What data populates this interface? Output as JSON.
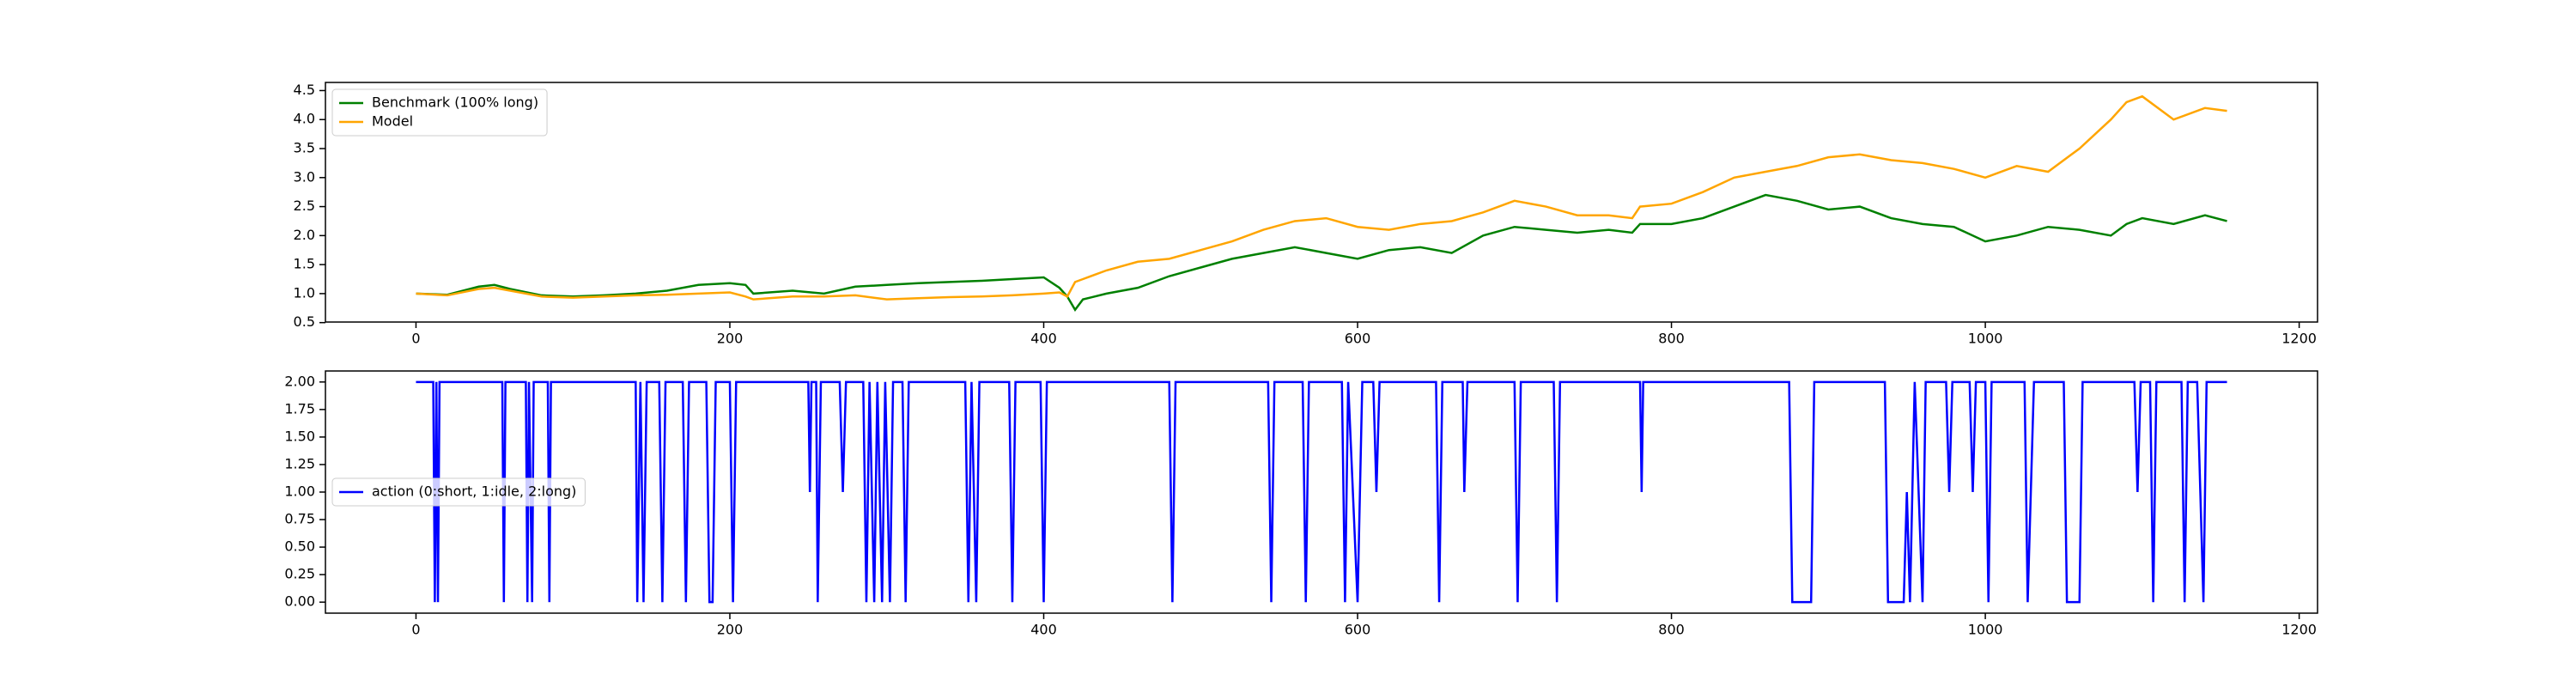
{
  "chart_data": [
    {
      "type": "line",
      "x": [
        0,
        20,
        40,
        50,
        60,
        80,
        100,
        120,
        140,
        160,
        180,
        200,
        210,
        215,
        240,
        260,
        280,
        300,
        320,
        340,
        360,
        380,
        400,
        410,
        415,
        420,
        425,
        440,
        460,
        480,
        500,
        520,
        540,
        560,
        580,
        600,
        620,
        640,
        660,
        680,
        700,
        720,
        740,
        760,
        775,
        780,
        800,
        820,
        840,
        860,
        880,
        900,
        920,
        940,
        960,
        980,
        1000,
        1020,
        1040,
        1060,
        1080,
        1090,
        1100,
        1120,
        1140,
        1154
      ],
      "series": [
        {
          "name": "Benchmark (100% long)",
          "color": "#008000",
          "values": [
            1.0,
            0.98,
            1.12,
            1.15,
            1.08,
            0.97,
            0.95,
            0.97,
            1.0,
            1.05,
            1.15,
            1.18,
            1.15,
            1.0,
            1.05,
            1.0,
            1.12,
            1.15,
            1.18,
            1.2,
            1.22,
            1.25,
            1.28,
            1.1,
            0.95,
            0.72,
            0.9,
            1.0,
            1.1,
            1.3,
            1.45,
            1.6,
            1.7,
            1.8,
            1.7,
            1.6,
            1.75,
            1.8,
            1.7,
            2.0,
            2.15,
            2.1,
            2.05,
            2.1,
            2.05,
            2.2,
            2.2,
            2.3,
            2.5,
            2.7,
            2.6,
            2.45,
            2.5,
            2.3,
            2.2,
            2.15,
            1.9,
            2.0,
            2.15,
            2.1,
            2.0,
            2.2,
            2.3,
            2.2,
            2.35,
            2.25
          ]
        },
        {
          "name": "Model",
          "color": "#ffa500",
          "values": [
            1.0,
            0.97,
            1.08,
            1.1,
            1.05,
            0.95,
            0.93,
            0.95,
            0.97,
            0.98,
            1.0,
            1.02,
            0.95,
            0.9,
            0.95,
            0.95,
            0.97,
            0.9,
            0.92,
            0.94,
            0.95,
            0.97,
            1.0,
            1.02,
            0.95,
            1.2,
            1.25,
            1.4,
            1.55,
            1.6,
            1.75,
            1.9,
            2.1,
            2.25,
            2.3,
            2.15,
            2.1,
            2.2,
            2.25,
            2.4,
            2.6,
            2.5,
            2.35,
            2.35,
            2.3,
            2.5,
            2.55,
            2.75,
            3.0,
            3.1,
            3.2,
            3.35,
            3.4,
            3.3,
            3.25,
            3.15,
            3.0,
            3.2,
            3.1,
            3.5,
            4.0,
            4.3,
            4.4,
            4.0,
            4.2,
            4.15
          ]
        }
      ],
      "xlim": [
        -57.7,
        1211.7
      ],
      "xticks": [
        0,
        200,
        400,
        600,
        800,
        1000,
        1200
      ],
      "ylim": [
        0.51,
        4.64
      ],
      "yticks": [
        0.5,
        {
          "value": 1.0,
          "label": "1.0"
        },
        1.5,
        {
          "value": 2.0,
          "label": "2.0"
        },
        2.5,
        {
          "value": 3.0,
          "label": "3.0"
        },
        3.5,
        {
          "value": 4.0,
          "label": "4.0"
        },
        4.5
      ],
      "legend": "upper left"
    },
    {
      "type": "line",
      "x": [
        0,
        11,
        12,
        13,
        14,
        15,
        55,
        56,
        57,
        70,
        71,
        72,
        74,
        75,
        84,
        85,
        86,
        140,
        141,
        143,
        145,
        147,
        155,
        157,
        159,
        170,
        172,
        174,
        185,
        187,
        189,
        191,
        200,
        202,
        204,
        250,
        251,
        252,
        255,
        256,
        258,
        270,
        272,
        274,
        285,
        287,
        289,
        292,
        294,
        297,
        299,
        302,
        304,
        310,
        312,
        314,
        350,
        352,
        354,
        357,
        359,
        378,
        380,
        382,
        398,
        400,
        402,
        480,
        482,
        484,
        543,
        545,
        547,
        565,
        567,
        569,
        590,
        592,
        594,
        600,
        603,
        610,
        612,
        614,
        650,
        652,
        654,
        667,
        668,
        670,
        700,
        702,
        704,
        725,
        727,
        729,
        780,
        781,
        782,
        875,
        877,
        889,
        891,
        936,
        938,
        948,
        950,
        952,
        955,
        960,
        962,
        975,
        977,
        979,
        990,
        992,
        994,
        1000,
        1002,
        1004,
        1025,
        1027,
        1029,
        1031,
        1050,
        1052,
        1060,
        1062,
        1095,
        1097,
        1099,
        1105,
        1107,
        1109,
        1125,
        1127,
        1129,
        1135,
        1137,
        1139,
        1141,
        1154
      ],
      "series": [
        {
          "name": "action (0:short, 1:idle, 2:long)",
          "color": "#0000ff",
          "values": [
            2,
            2,
            0,
            2,
            0,
            2,
            2,
            0,
            2,
            2,
            0,
            2,
            0,
            2,
            2,
            0,
            2,
            2,
            0,
            2,
            0,
            2,
            2,
            0,
            2,
            2,
            0,
            2,
            2,
            0,
            0,
            2,
            2,
            0,
            2,
            2,
            1,
            2,
            2,
            0,
            2,
            2,
            1,
            2,
            2,
            0,
            2,
            0,
            2,
            0,
            2,
            0,
            2,
            2,
            0,
            2,
            2,
            0,
            2,
            0,
            2,
            2,
            0,
            2,
            2,
            0,
            2,
            2,
            0,
            2,
            2,
            0,
            2,
            2,
            0,
            2,
            2,
            0,
            2,
            0,
            2,
            2,
            1,
            2,
            2,
            0,
            2,
            2,
            1,
            2,
            2,
            0,
            2,
            2,
            0,
            2,
            2,
            1,
            2,
            2,
            0,
            0,
            2,
            2,
            0,
            0,
            1,
            0,
            2,
            0,
            2,
            2,
            1,
            2,
            2,
            1,
            2,
            2,
            0,
            2,
            2,
            0,
            1,
            2,
            2,
            0,
            0,
            2,
            2,
            1,
            2,
            2,
            0,
            2,
            2,
            0,
            2,
            2,
            1,
            0,
            2,
            2
          ]
        }
      ],
      "xlim": [
        -57.7,
        1211.7
      ],
      "xticks": [
        0,
        200,
        400,
        600,
        800,
        1000,
        1200
      ],
      "ylim": [
        -0.1,
        2.1
      ],
      "yticks": [
        {
          "value": 0,
          "label": "0.00"
        },
        0.25,
        {
          "value": 0.5,
          "label": "0.50"
        },
        0.75,
        {
          "value": 1,
          "label": "1.00"
        },
        1.25,
        {
          "value": 1.5,
          "label": "1.50"
        },
        1.75,
        {
          "value": 2,
          "label": "2.00"
        }
      ],
      "legend": "center left"
    }
  ]
}
